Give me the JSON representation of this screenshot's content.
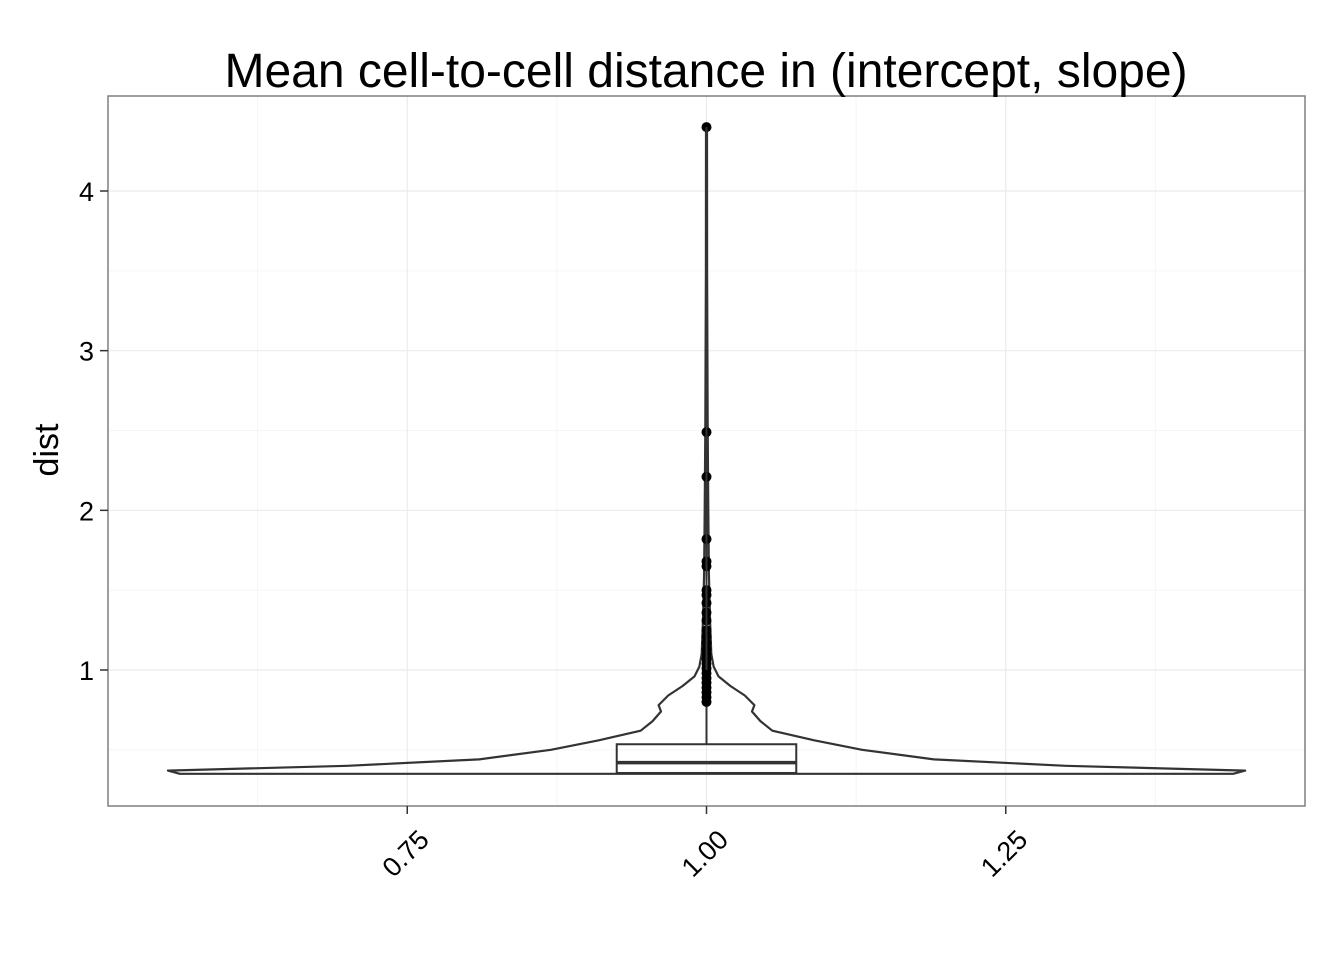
{
  "chart_data": {
    "type": "violin",
    "title": "Mean cell-to-cell distance in (intercept, slope)",
    "xlabel": "",
    "ylabel": "dist",
    "xlim": [
      0.5,
      1.5
    ],
    "ylim": [
      0.15,
      4.4
    ],
    "x_ticks": [
      0.75,
      1.0,
      1.25
    ],
    "x_tick_labels": [
      "0.75",
      "1.00",
      "1.25"
    ],
    "y_ticks": [
      1,
      2,
      3,
      4
    ],
    "y_tick_labels": [
      "1",
      "2",
      "3",
      "4"
    ],
    "grid": true,
    "colors": {
      "outline": "#333333",
      "point": "#000000",
      "grid": "#ebebeb",
      "panel_border": "#7f7f7f"
    },
    "violin": {
      "x": 1.0,
      "max_half_width": 0.45,
      "profile": [
        {
          "y": 0.35,
          "half_width": 0.44
        },
        {
          "y": 0.37,
          "half_width": 0.45
        },
        {
          "y": 0.4,
          "half_width": 0.3
        },
        {
          "y": 0.44,
          "half_width": 0.19
        },
        {
          "y": 0.5,
          "half_width": 0.13
        },
        {
          "y": 0.56,
          "half_width": 0.09
        },
        {
          "y": 0.62,
          "half_width": 0.055
        },
        {
          "y": 0.68,
          "half_width": 0.045
        },
        {
          "y": 0.74,
          "half_width": 0.038
        },
        {
          "y": 0.78,
          "half_width": 0.04
        },
        {
          "y": 0.84,
          "half_width": 0.032
        },
        {
          "y": 0.9,
          "half_width": 0.02
        },
        {
          "y": 0.96,
          "half_width": 0.01
        },
        {
          "y": 1.02,
          "half_width": 0.006
        },
        {
          "y": 1.1,
          "half_width": 0.004
        },
        {
          "y": 1.3,
          "half_width": 0.003
        },
        {
          "y": 1.6,
          "half_width": 0.002
        },
        {
          "y": 2.0,
          "half_width": 0.0015
        },
        {
          "y": 2.5,
          "half_width": 0.001
        },
        {
          "y": 3.5,
          "half_width": 0.0005
        },
        {
          "y": 4.4,
          "half_width": 0.0004
        }
      ]
    },
    "boxplot": {
      "x": 1.0,
      "half_width": 0.075,
      "lower_hinge": 0.355,
      "median": 0.42,
      "upper_hinge": 0.535,
      "whisker_low": 0.355,
      "whisker_high": 0.8
    },
    "outliers": [
      0.8,
      0.83,
      0.86,
      0.89,
      0.92,
      0.95,
      0.98,
      1.01,
      1.04,
      1.07,
      1.1,
      1.13,
      1.17,
      1.21,
      1.25,
      1.31,
      1.36,
      1.42,
      1.47,
      1.5,
      1.65,
      1.68,
      1.82,
      2.21,
      2.49,
      4.4
    ]
  }
}
